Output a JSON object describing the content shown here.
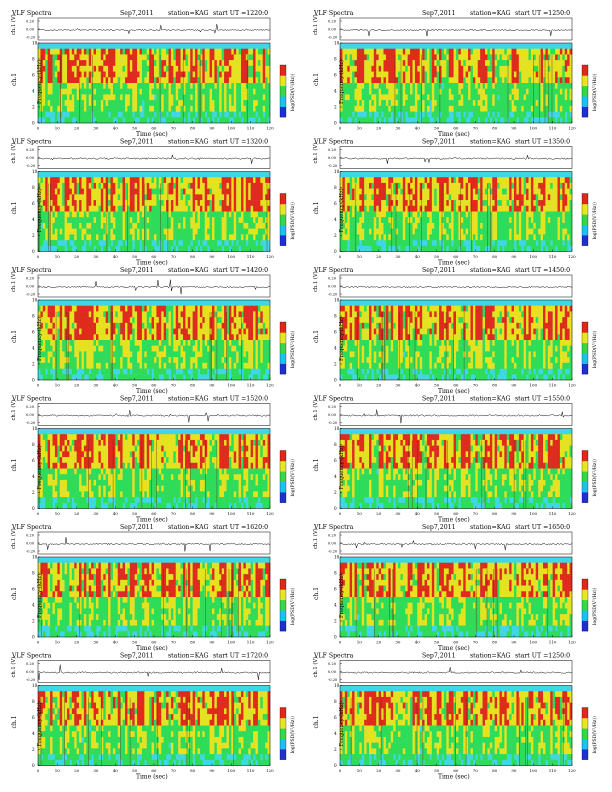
{
  "header": {
    "title": "VLF Spectra",
    "date": "Sep7,2011",
    "station": "station=KAG"
  },
  "axes": {
    "ch1_label": "ch.1 (V)",
    "ch1_ticks": [
      "0.20",
      "0.00",
      "-0.20"
    ],
    "freq_label": "Frequency (kHz)",
    "freq_ticks": [
      "0",
      "2",
      "4",
      "6",
      "8",
      "10"
    ],
    "panel_tag": "ch.1",
    "time_label": "Time (sec)",
    "time_ticks": [
      "0",
      "10",
      "20",
      "30",
      "40",
      "50",
      "60",
      "70",
      "80",
      "90",
      "100",
      "110",
      "120"
    ],
    "colorbar_label": "log(PSD(V²/Hz))"
  },
  "colors": {
    "background_band": "#3fd7e6",
    "low": "#2fdc59",
    "mid": "#e6e21f",
    "high": "#e02a1c",
    "colorbar": [
      "#1f2fd6",
      "#18c3ef",
      "#34d94a",
      "#e8e620",
      "#e0281a"
    ]
  },
  "chart_data": [
    {
      "type": "heatmap",
      "start_ut": "start UT =1220:0",
      "xlim": [
        0,
        120
      ],
      "ylim": [
        0,
        10
      ],
      "y2lim": [
        -0.2,
        0.2
      ]
    },
    {
      "type": "heatmap",
      "start_ut": "start UT =1250:0",
      "xlim": [
        0,
        120
      ],
      "ylim": [
        0,
        10
      ],
      "y2lim": [
        -0.2,
        0.2
      ]
    },
    {
      "type": "heatmap",
      "start_ut": "start UT =1320:0",
      "xlim": [
        0,
        120
      ],
      "ylim": [
        0,
        10
      ],
      "y2lim": [
        -0.2,
        0.2
      ]
    },
    {
      "type": "heatmap",
      "start_ut": "start UT =1350:0",
      "xlim": [
        0,
        120
      ],
      "ylim": [
        0,
        10
      ],
      "y2lim": [
        -0.2,
        0.2
      ]
    },
    {
      "type": "heatmap",
      "start_ut": "start UT =1420:0",
      "xlim": [
        0,
        120
      ],
      "ylim": [
        0,
        10
      ],
      "y2lim": [
        -0.2,
        0.2
      ]
    },
    {
      "type": "heatmap",
      "start_ut": "start UT =1450:0",
      "xlim": [
        0,
        120
      ],
      "ylim": [
        0,
        10
      ],
      "y2lim": [
        -0.2,
        0.2
      ]
    },
    {
      "type": "heatmap",
      "start_ut": "start UT =1520:0",
      "xlim": [
        0,
        120
      ],
      "ylim": [
        0,
        10
      ],
      "y2lim": [
        -0.2,
        0.2
      ]
    },
    {
      "type": "heatmap",
      "start_ut": "start UT =1550:0",
      "xlim": [
        0,
        120
      ],
      "ylim": [
        0,
        10
      ],
      "y2lim": [
        -0.2,
        0.2
      ]
    },
    {
      "type": "heatmap",
      "start_ut": "start UT =1620:0",
      "xlim": [
        0,
        120
      ],
      "ylim": [
        0,
        10
      ],
      "y2lim": [
        -0.2,
        0.2
      ]
    },
    {
      "type": "heatmap",
      "start_ut": "start UT =1650:0",
      "xlim": [
        0,
        120
      ],
      "ylim": [
        0,
        10
      ],
      "y2lim": [
        -0.2,
        0.2
      ]
    },
    {
      "type": "heatmap",
      "start_ut": "start UT =1720:0",
      "xlim": [
        0,
        120
      ],
      "ylim": [
        0,
        10
      ],
      "y2lim": [
        -0.2,
        0.2
      ]
    },
    {
      "type": "heatmap",
      "start_ut": "start UT =1250:0",
      "xlim": [
        0,
        120
      ],
      "ylim": [
        0,
        10
      ],
      "y2lim": [
        -0.2,
        0.2
      ]
    }
  ]
}
